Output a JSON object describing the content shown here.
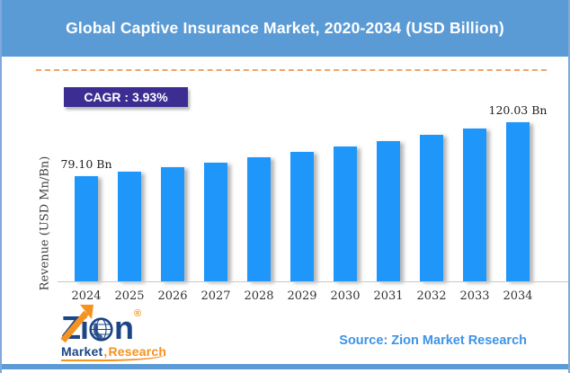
{
  "header": {
    "title": "Global Captive Insurance Market, 2020-2034 (USD Billion)"
  },
  "badge": {
    "label": "CAGR : 3.93%"
  },
  "chart_data": {
    "type": "bar",
    "title": "Global Captive Insurance Market, 2020-2034 (USD Billion)",
    "xlabel": "",
    "ylabel": "Revenue (USD Mn/Bn)",
    "categories": [
      "2024",
      "2025",
      "2026",
      "2027",
      "2028",
      "2029",
      "2030",
      "2031",
      "2032",
      "2033",
      "2034"
    ],
    "values": [
      79.1,
      82.47,
      85.98,
      89.64,
      93.46,
      97.44,
      101.59,
      105.91,
      110.42,
      115.13,
      120.03
    ],
    "unit": "USD Bn",
    "data_labels": {
      "first": "79.10 Bn",
      "last": "120.03 Bn"
    },
    "cagr_text": "CAGR : 3.93%",
    "legend": "none",
    "grid": false,
    "ylim": [
      0,
      130
    ],
    "bar_color": "#1F96FA"
  },
  "footer": {
    "source_text": "Source: Zion Market Research",
    "logo": {
      "brand_z": "Z",
      "brand_i": "i",
      "brand_n": "n",
      "registered_mark": "®",
      "tagline_left": "Market",
      "tagline_comma": ",",
      "tagline_right": "Research"
    }
  },
  "colors": {
    "header_bg": "#5B9BD5",
    "border_blue": "#7FA9DA",
    "bottom_bar": "#5B9BD5",
    "bar_fill": "#1F96FA",
    "badge_bg": "#3C2D92",
    "badge_text": "#FFFFFF",
    "dashed_line": "#F0A36B",
    "axis_line": "#C9C9C9",
    "label_text": "#333333",
    "source_text": "#3E93E6",
    "logo_navy": "#1B4585",
    "logo_orange": "#F6921E"
  }
}
